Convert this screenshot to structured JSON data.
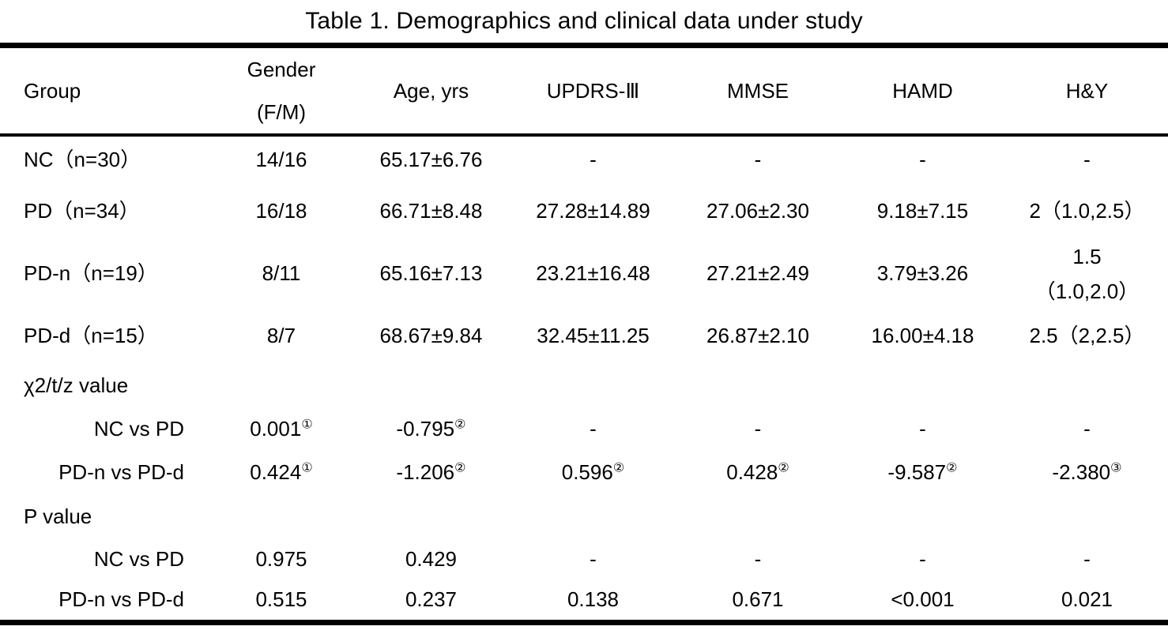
{
  "title": "Table 1. Demographics and clinical data under study",
  "table": {
    "columns": [
      {
        "id": "group",
        "label": "Group"
      },
      {
        "id": "gender",
        "label": "Gender\n(F/M)"
      },
      {
        "id": "age",
        "label": "Age, yrs"
      },
      {
        "id": "updrs",
        "label": "UPDRS-Ⅲ"
      },
      {
        "id": "mmse",
        "label": "MMSE"
      },
      {
        "id": "hamd",
        "label": "HAMD"
      },
      {
        "id": "hy",
        "label": "H&Y"
      }
    ],
    "rows": [
      {
        "label": "NC（n=30）",
        "type": "group",
        "cells": [
          "14/16",
          "65.17±6.76",
          "-",
          "-",
          "-",
          "-"
        ]
      },
      {
        "label": "PD（n=34）",
        "type": "group",
        "cells": [
          "16/18",
          "66.71±8.48",
          "27.28±14.89",
          "27.06±2.30",
          "9.18±7.15",
          "2（1.0,2.5）"
        ]
      },
      {
        "label": "PD-n（n=19）",
        "type": "group",
        "cells": [
          "8/11",
          "65.16±7.13",
          "23.21±16.48",
          "27.21±2.49",
          "3.79±3.26",
          "1.5\n（1.0,2.0）"
        ]
      },
      {
        "label": "PD-d（n=15）",
        "type": "group",
        "cells": [
          "8/7",
          "68.67±9.84",
          "32.45±11.25",
          "26.87±2.10",
          "16.00±4.18",
          "2.5（2,2.5）"
        ]
      },
      {
        "label": "χ2/t/z value",
        "type": "section",
        "cells": [
          "",
          "",
          "",
          "",
          "",
          ""
        ]
      },
      {
        "label": "NC vs PD",
        "type": "comparison",
        "cells": [
          {
            "v": "0.001",
            "sup": "①"
          },
          {
            "v": "-0.795",
            "sup": "②"
          },
          "-",
          "-",
          "-",
          "-"
        ]
      },
      {
        "label": "PD-n vs PD-d",
        "type": "comparison",
        "cells": [
          {
            "v": "0.424",
            "sup": "①"
          },
          {
            "v": "-1.206",
            "sup": "②"
          },
          {
            "v": "0.596",
            "sup": "②"
          },
          {
            "v": "0.428",
            "sup": "②"
          },
          {
            "v": "-9.587",
            "sup": "②"
          },
          {
            "v": "-2.380",
            "sup": "③"
          }
        ]
      },
      {
        "label": "P value",
        "type": "section",
        "cells": [
          "",
          "",
          "",
          "",
          "",
          ""
        ]
      },
      {
        "label": "NC vs PD",
        "type": "comparison",
        "cells": [
          "0.975",
          "0.429",
          "-",
          "-",
          "-",
          "-"
        ]
      },
      {
        "label": "PD-n vs PD-d",
        "type": "comparison",
        "cells": [
          "0.515",
          "0.237",
          "0.138",
          "0.671",
          "<0.001",
          "0.021"
        ]
      }
    ]
  }
}
